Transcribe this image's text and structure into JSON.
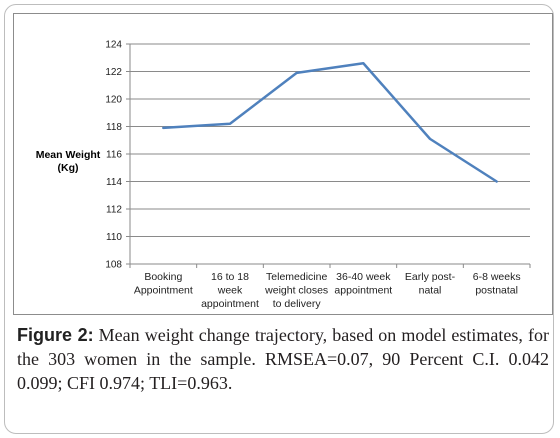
{
  "ylabel_lines": [
    "Mean Weight",
    "(Kg)"
  ],
  "caption": {
    "figure_label": "Figure 2:",
    "text": " Mean weight change trajectory, based on model estimates, for the 303 women in the sample. RMSEA=0.07, 90 Percent C.I. 0.042 0.099; CFI 0.974; TLI=0.963."
  },
  "chart_data": {
    "type": "line",
    "title": "",
    "ylabel": "Mean Weight (Kg)",
    "xlabel": "",
    "ylim": [
      108,
      124
    ],
    "yticks": [
      108,
      110,
      112,
      114,
      116,
      118,
      120,
      122,
      124
    ],
    "grid": true,
    "categories": [
      [
        "Booking",
        "Appointment"
      ],
      [
        "16 to 18",
        "week",
        "appointment"
      ],
      [
        "Telemedicine",
        "weight closes",
        "to delivery"
      ],
      [
        "36-40 week",
        "appointment"
      ],
      [
        "Early post-",
        "natal"
      ],
      [
        "6-8 weeks",
        "postnatal"
      ]
    ],
    "series": [
      {
        "values": [
          117.9,
          118.2,
          121.9,
          122.6,
          117.1,
          114.0
        ]
      }
    ],
    "line_color": "#4f81bd"
  }
}
